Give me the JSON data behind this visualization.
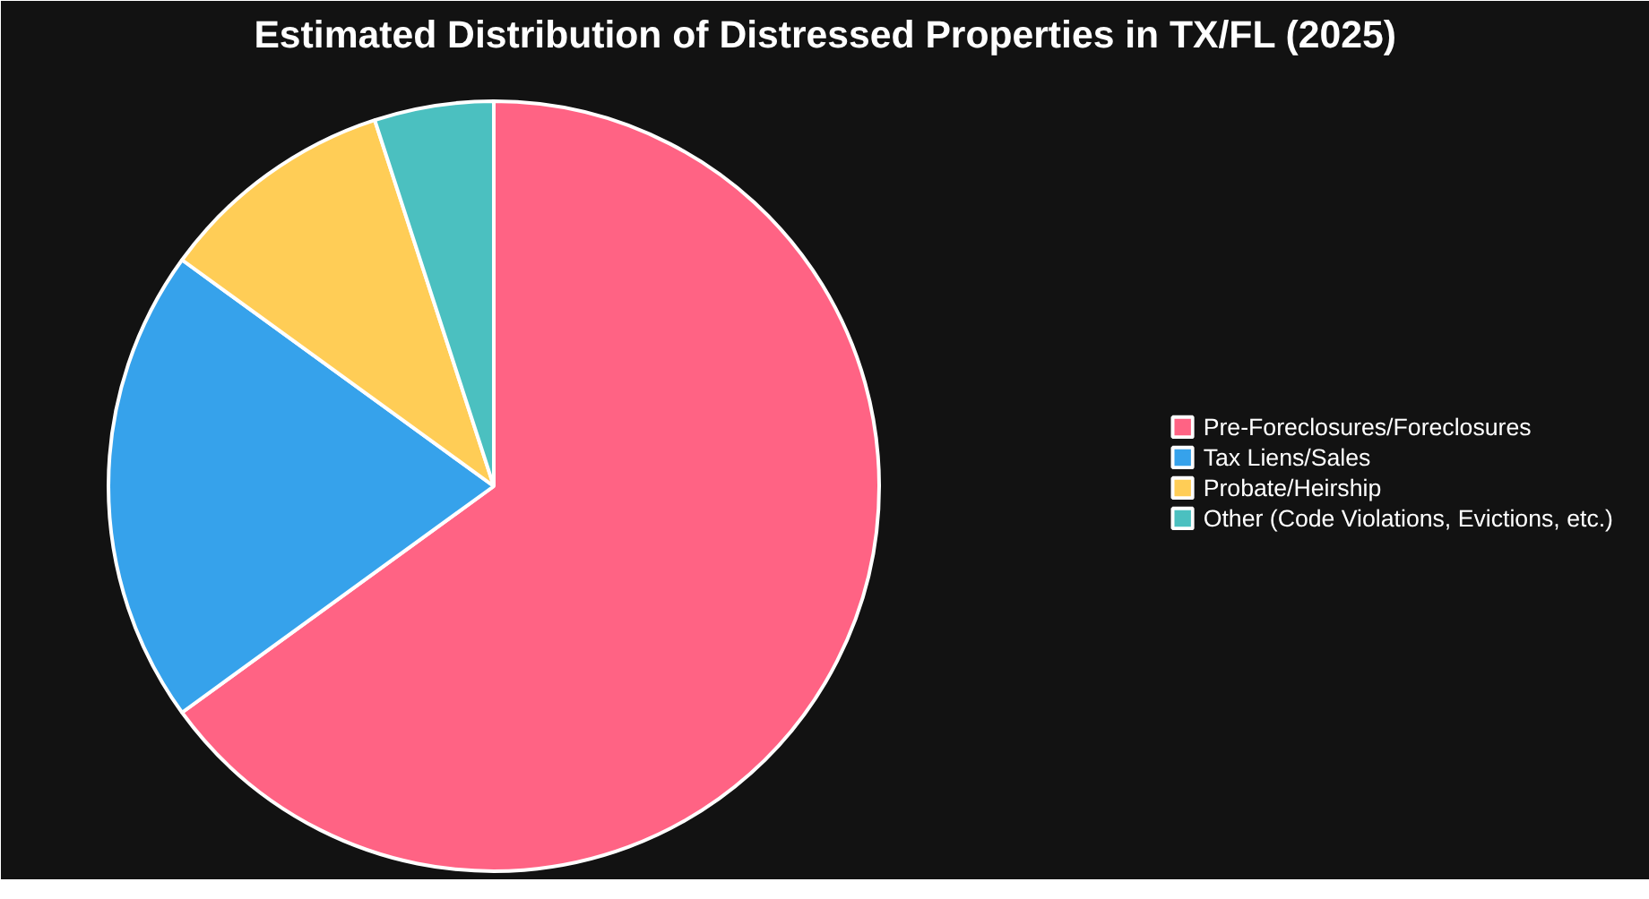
{
  "chart_data": {
    "type": "pie",
    "title": "Estimated Distribution of Distressed Properties in TX/FL (2025)",
    "categories": [
      "Pre-Foreclosures/Foreclosures",
      "Tax Liens/Sales",
      "Probate/Heirship",
      "Other (Code Violations, Evictions, etc.)"
    ],
    "values": [
      65,
      20,
      10,
      5
    ],
    "colors": [
      "#ff6384",
      "#36a2eb",
      "#ffcd56",
      "#4bc0c0"
    ],
    "legend": "right"
  }
}
